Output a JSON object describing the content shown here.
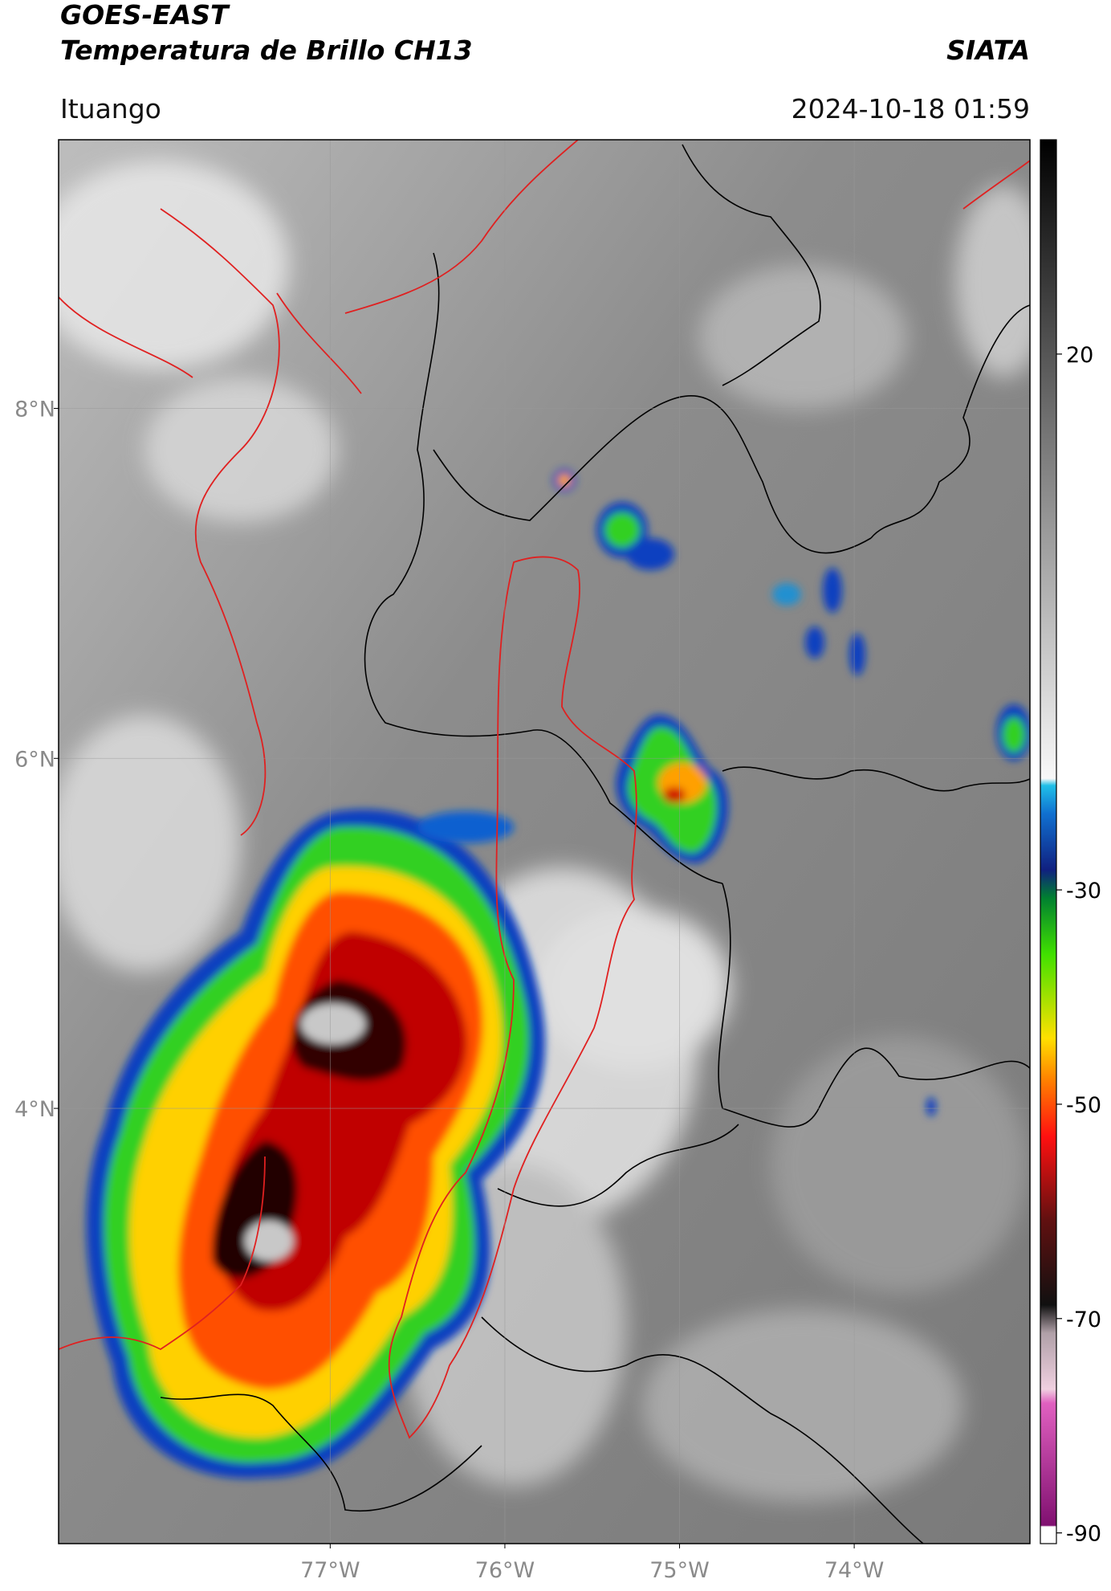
{
  "header": {
    "title": "GOES-EAST",
    "subtitle": "Temperatura de Brillo CH13",
    "source": "SIATA",
    "location": "Ituango",
    "datetime": "2024-10-18 01:59"
  },
  "map": {
    "xlim": [
      -78.555,
      -72.994
    ],
    "ylim": [
      1.513,
      9.535
    ],
    "xticks": [
      {
        "value": -77,
        "label": "77°W"
      },
      {
        "value": -76,
        "label": "76°W"
      },
      {
        "value": -75,
        "label": "75°W"
      },
      {
        "value": -74,
        "label": "74°W"
      }
    ],
    "yticks": [
      {
        "value": 8,
        "label": "8°N"
      },
      {
        "value": 6,
        "label": "6°N"
      },
      {
        "value": 4,
        "label": "4°N"
      }
    ],
    "grid": true
  },
  "colorbar": {
    "lim": [
      -91,
      40
    ],
    "ticks": [
      20,
      -30,
      -50,
      -70,
      -90
    ]
  }
}
